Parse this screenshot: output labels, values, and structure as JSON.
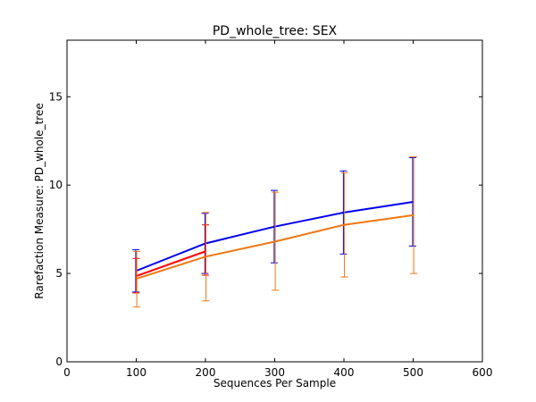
{
  "chart_data": {
    "type": "line",
    "title": "PD_whole_tree: SEX",
    "xlabel": "Sequences Per Sample",
    "ylabel": "Rarefaction Measure: PD_whole_tree",
    "xlim": [
      0,
      600
    ],
    "ylim": [
      0,
      18.2
    ],
    "xticks": [
      0,
      100,
      200,
      300,
      400,
      500,
      600
    ],
    "yticks": [
      0,
      5,
      10,
      15
    ],
    "grid": false,
    "series": [
      {
        "color": "#0000ee",
        "x": [
          100,
          200,
          300,
          400,
          500
        ],
        "y": [
          5.15,
          6.7,
          7.65,
          8.45,
          9.05
        ],
        "err_low": [
          3.95,
          5.0,
          5.6,
          6.1,
          6.55
        ],
        "err_high": [
          6.35,
          8.4,
          9.7,
          10.8,
          11.55
        ]
      },
      {
        "color": "#ff0000",
        "x": [
          100,
          200
        ],
        "y": [
          4.85,
          6.25
        ],
        "err_low": [
          3.9,
          4.9
        ],
        "err_high": [
          5.85,
          7.75
        ]
      },
      {
        "color": "#ee7711",
        "x": [
          100,
          200,
          300,
          400,
          500
        ],
        "y": [
          4.7,
          5.95,
          6.8,
          7.75,
          8.3
        ],
        "err_low": [
          3.1,
          3.45,
          4.05,
          4.8,
          5.0
        ],
        "err_high": [
          6.25,
          8.45,
          9.6,
          10.7,
          11.6
        ]
      }
    ]
  }
}
